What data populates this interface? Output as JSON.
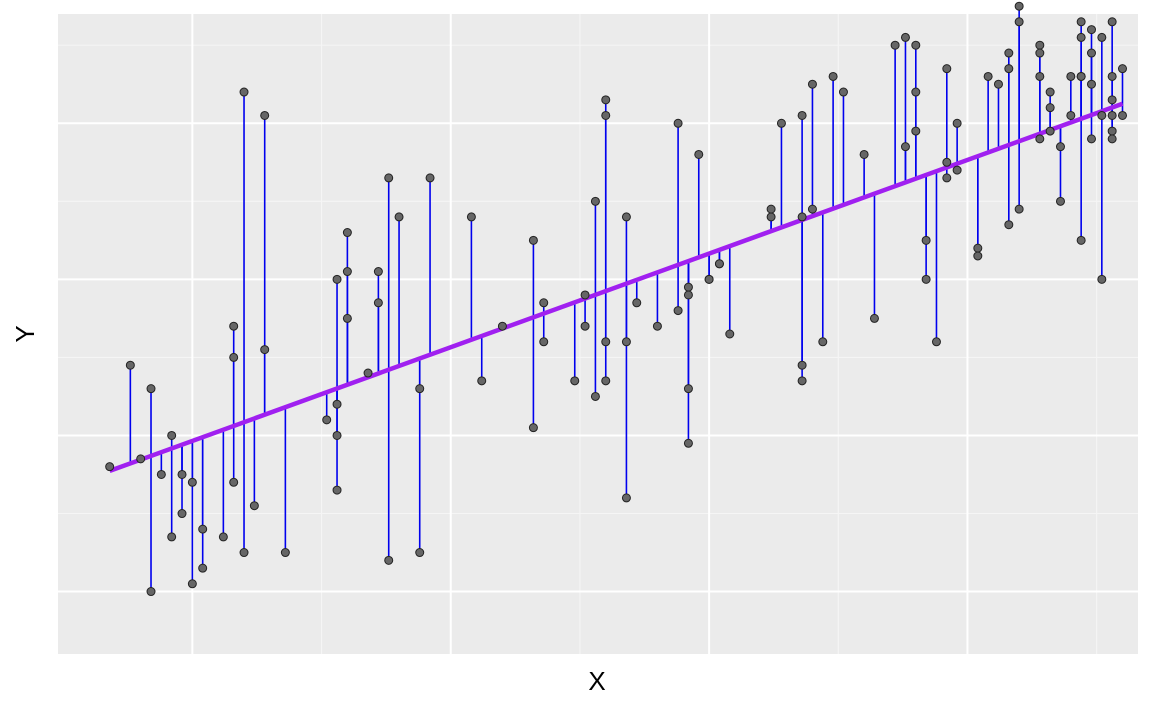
{
  "colors": {
    "panel_bg": "#ebebeb",
    "grid_major": "#ffffff",
    "grid_minor": "#f5f5f5",
    "residual": "#0000ee",
    "fit_line": "#a020f0",
    "point_fill": "#666666",
    "point_stroke": "#222222"
  },
  "chart_data": {
    "type": "scatter",
    "xlabel": "X",
    "ylabel": "Y",
    "xlim": [
      -0.3,
      10.15
    ],
    "ylim": [
      -0.8,
      7.4
    ],
    "x_gridlines_major": [
      1.0,
      3.5,
      6.0,
      8.5
    ],
    "x_gridlines_minor": [
      2.25,
      4.75,
      7.25,
      9.75
    ],
    "y_gridlines_major": [
      0.0,
      2.0,
      4.0,
      6.0
    ],
    "y_gridlines_minor": [
      1.0,
      3.0,
      5.0,
      7.0
    ],
    "tick_labels_shown": false,
    "grid": true,
    "regression_line": {
      "intercept": 1.45,
      "slope": 0.48
    },
    "residual_segments": true,
    "points": [
      {
        "x": 0.2,
        "y": 1.6
      },
      {
        "x": 0.4,
        "y": 2.9
      },
      {
        "x": 0.5,
        "y": 1.7
      },
      {
        "x": 0.6,
        "y": 2.6
      },
      {
        "x": 0.6,
        "y": 0.0
      },
      {
        "x": 0.7,
        "y": 1.5
      },
      {
        "x": 0.8,
        "y": 2.0
      },
      {
        "x": 0.8,
        "y": 0.7
      },
      {
        "x": 0.9,
        "y": 1.5
      },
      {
        "x": 0.9,
        "y": 1.0
      },
      {
        "x": 1.0,
        "y": 1.4
      },
      {
        "x": 1.0,
        "y": 0.1
      },
      {
        "x": 1.1,
        "y": 0.8
      },
      {
        "x": 1.1,
        "y": 0.3
      },
      {
        "x": 1.3,
        "y": 0.7
      },
      {
        "x": 1.4,
        "y": 3.4
      },
      {
        "x": 1.4,
        "y": 3.0
      },
      {
        "x": 1.4,
        "y": 1.4
      },
      {
        "x": 1.5,
        "y": 6.4
      },
      {
        "x": 1.5,
        "y": 0.5
      },
      {
        "x": 1.6,
        "y": 1.1
      },
      {
        "x": 1.7,
        "y": 6.1
      },
      {
        "x": 1.7,
        "y": 3.1
      },
      {
        "x": 1.9,
        "y": 0.5
      },
      {
        "x": 2.3,
        "y": 2.2
      },
      {
        "x": 2.4,
        "y": 4.0
      },
      {
        "x": 2.4,
        "y": 2.4
      },
      {
        "x": 2.4,
        "y": 2.0
      },
      {
        "x": 2.4,
        "y": 1.3
      },
      {
        "x": 2.5,
        "y": 4.6
      },
      {
        "x": 2.5,
        "y": 4.1
      },
      {
        "x": 2.5,
        "y": 3.5
      },
      {
        "x": 2.7,
        "y": 2.8
      },
      {
        "x": 2.8,
        "y": 4.1
      },
      {
        "x": 2.8,
        "y": 3.7
      },
      {
        "x": 2.9,
        "y": 5.3
      },
      {
        "x": 2.9,
        "y": 0.4
      },
      {
        "x": 3.0,
        "y": 4.8
      },
      {
        "x": 3.2,
        "y": 2.6
      },
      {
        "x": 3.2,
        "y": 0.5
      },
      {
        "x": 3.3,
        "y": 5.3
      },
      {
        "x": 3.7,
        "y": 4.8
      },
      {
        "x": 3.8,
        "y": 2.7
      },
      {
        "x": 4.0,
        "y": 3.4
      },
      {
        "x": 4.3,
        "y": 4.5
      },
      {
        "x": 4.3,
        "y": 2.1
      },
      {
        "x": 4.4,
        "y": 3.7
      },
      {
        "x": 4.4,
        "y": 3.2
      },
      {
        "x": 4.7,
        "y": 2.7
      },
      {
        "x": 4.8,
        "y": 3.8
      },
      {
        "x": 4.8,
        "y": 3.4
      },
      {
        "x": 4.9,
        "y": 5.0
      },
      {
        "x": 4.9,
        "y": 2.5
      },
      {
        "x": 5.0,
        "y": 6.3
      },
      {
        "x": 5.0,
        "y": 6.1
      },
      {
        "x": 5.0,
        "y": 3.2
      },
      {
        "x": 5.0,
        "y": 2.7
      },
      {
        "x": 5.2,
        "y": 4.8
      },
      {
        "x": 5.2,
        "y": 3.2
      },
      {
        "x": 5.2,
        "y": 1.2
      },
      {
        "x": 5.3,
        "y": 3.7
      },
      {
        "x": 5.5,
        "y": 3.4
      },
      {
        "x": 5.7,
        "y": 6.0
      },
      {
        "x": 5.7,
        "y": 3.6
      },
      {
        "x": 5.8,
        "y": 3.9
      },
      {
        "x": 5.8,
        "y": 3.8
      },
      {
        "x": 5.8,
        "y": 2.6
      },
      {
        "x": 5.8,
        "y": 1.9
      },
      {
        "x": 5.9,
        "y": 5.6
      },
      {
        "x": 6.0,
        "y": 4.0
      },
      {
        "x": 6.0,
        "y": 4.0
      },
      {
        "x": 6.1,
        "y": 4.2
      },
      {
        "x": 6.1,
        "y": 4.2
      },
      {
        "x": 6.2,
        "y": 3.3
      },
      {
        "x": 6.6,
        "y": 4.8
      },
      {
        "x": 6.6,
        "y": 4.9
      },
      {
        "x": 6.7,
        "y": 6.0
      },
      {
        "x": 6.9,
        "y": 6.1
      },
      {
        "x": 6.9,
        "y": 4.8
      },
      {
        "x": 6.9,
        "y": 2.9
      },
      {
        "x": 6.9,
        "y": 2.7
      },
      {
        "x": 7.0,
        "y": 6.5
      },
      {
        "x": 7.0,
        "y": 4.9
      },
      {
        "x": 7.1,
        "y": 3.2
      },
      {
        "x": 7.2,
        "y": 6.6
      },
      {
        "x": 7.3,
        "y": 6.4
      },
      {
        "x": 7.5,
        "y": 5.6
      },
      {
        "x": 7.6,
        "y": 3.5
      },
      {
        "x": 7.8,
        "y": 7.0
      },
      {
        "x": 7.9,
        "y": 7.1
      },
      {
        "x": 7.9,
        "y": 5.7
      },
      {
        "x": 8.0,
        "y": 7.0
      },
      {
        "x": 8.0,
        "y": 6.4
      },
      {
        "x": 8.0,
        "y": 5.9
      },
      {
        "x": 8.1,
        "y": 4.0
      },
      {
        "x": 8.1,
        "y": 4.5
      },
      {
        "x": 8.2,
        "y": 3.2
      },
      {
        "x": 8.3,
        "y": 6.7
      },
      {
        "x": 8.3,
        "y": 5.5
      },
      {
        "x": 8.3,
        "y": 5.3
      },
      {
        "x": 8.4,
        "y": 6.0
      },
      {
        "x": 8.4,
        "y": 5.4
      },
      {
        "x": 8.6,
        "y": 4.4
      },
      {
        "x": 8.6,
        "y": 4.3
      },
      {
        "x": 8.7,
        "y": 6.6
      },
      {
        "x": 8.8,
        "y": 6.5
      },
      {
        "x": 8.9,
        "y": 6.9
      },
      {
        "x": 8.9,
        "y": 6.7
      },
      {
        "x": 8.9,
        "y": 4.7
      },
      {
        "x": 9.0,
        "y": 7.5
      },
      {
        "x": 9.0,
        "y": 7.3
      },
      {
        "x": 9.0,
        "y": 4.9
      },
      {
        "x": 9.2,
        "y": 7.0
      },
      {
        "x": 9.2,
        "y": 6.9
      },
      {
        "x": 9.2,
        "y": 6.6
      },
      {
        "x": 9.2,
        "y": 5.8
      },
      {
        "x": 9.3,
        "y": 6.4
      },
      {
        "x": 9.3,
        "y": 6.2
      },
      {
        "x": 9.3,
        "y": 5.9
      },
      {
        "x": 9.4,
        "y": 5.7
      },
      {
        "x": 9.4,
        "y": 5.0
      },
      {
        "x": 9.5,
        "y": 6.6
      },
      {
        "x": 9.5,
        "y": 6.1
      },
      {
        "x": 9.6,
        "y": 7.3
      },
      {
        "x": 9.6,
        "y": 7.1
      },
      {
        "x": 9.6,
        "y": 6.6
      },
      {
        "x": 9.6,
        "y": 6.6
      },
      {
        "x": 9.6,
        "y": 4.5
      },
      {
        "x": 9.7,
        "y": 7.2
      },
      {
        "x": 9.7,
        "y": 6.9
      },
      {
        "x": 9.7,
        "y": 6.5
      },
      {
        "x": 9.7,
        "y": 5.8
      },
      {
        "x": 9.8,
        "y": 7.1
      },
      {
        "x": 9.8,
        "y": 6.1
      },
      {
        "x": 9.8,
        "y": 4.0
      },
      {
        "x": 9.9,
        "y": 7.3
      },
      {
        "x": 9.9,
        "y": 6.6
      },
      {
        "x": 9.9,
        "y": 6.3
      },
      {
        "x": 9.9,
        "y": 6.1
      },
      {
        "x": 9.9,
        "y": 5.9
      },
      {
        "x": 9.9,
        "y": 5.8
      },
      {
        "x": 10.0,
        "y": 6.7
      },
      {
        "x": 10.0,
        "y": 6.1
      }
    ]
  }
}
